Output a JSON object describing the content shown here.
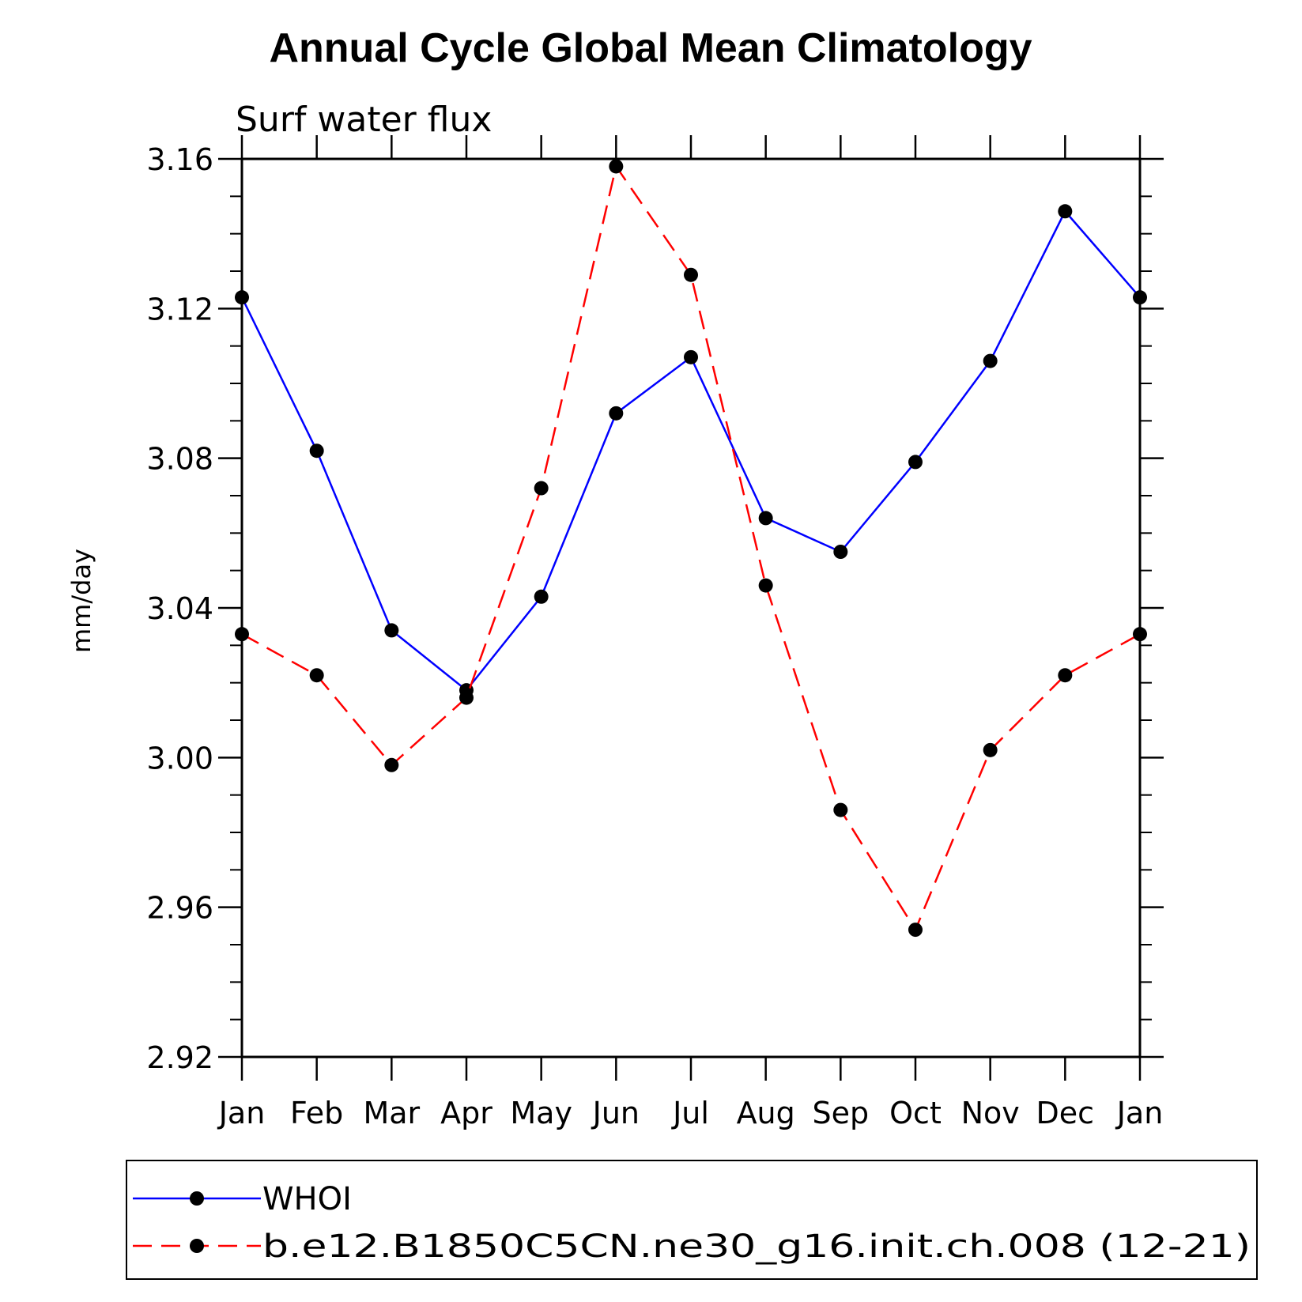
{
  "chart_data": {
    "type": "line",
    "title": "Annual Cycle Global Mean Climatology",
    "subtitle": "Surf water flux",
    "xlabel": "",
    "ylabel": "mm/day",
    "categories": [
      "Jan",
      "Feb",
      "Mar",
      "Apr",
      "May",
      "Jun",
      "Jul",
      "Aug",
      "Sep",
      "Oct",
      "Nov",
      "Dec",
      "Jan"
    ],
    "ylim": [
      2.92,
      3.16
    ],
    "yticks": [
      "2.92",
      "2.96",
      "3.00",
      "3.04",
      "3.08",
      "3.12",
      "3.16"
    ],
    "grid": false,
    "legend_position": "bottom",
    "series": [
      {
        "name": "WHOI",
        "color": "#0000ff",
        "style": "solid",
        "values": [
          3.123,
          3.082,
          3.034,
          3.018,
          3.043,
          3.092,
          3.107,
          3.064,
          3.055,
          3.079,
          3.106,
          3.146,
          3.123
        ]
      },
      {
        "name": "b.e12.B1850C5CN.ne30_g16.init.ch.008 (12-21)",
        "color": "#ff0000",
        "style": "dashed",
        "values": [
          3.033,
          3.022,
          2.998,
          3.016,
          3.072,
          3.158,
          3.129,
          3.046,
          2.986,
          2.954,
          3.002,
          3.022,
          3.033
        ]
      }
    ]
  }
}
